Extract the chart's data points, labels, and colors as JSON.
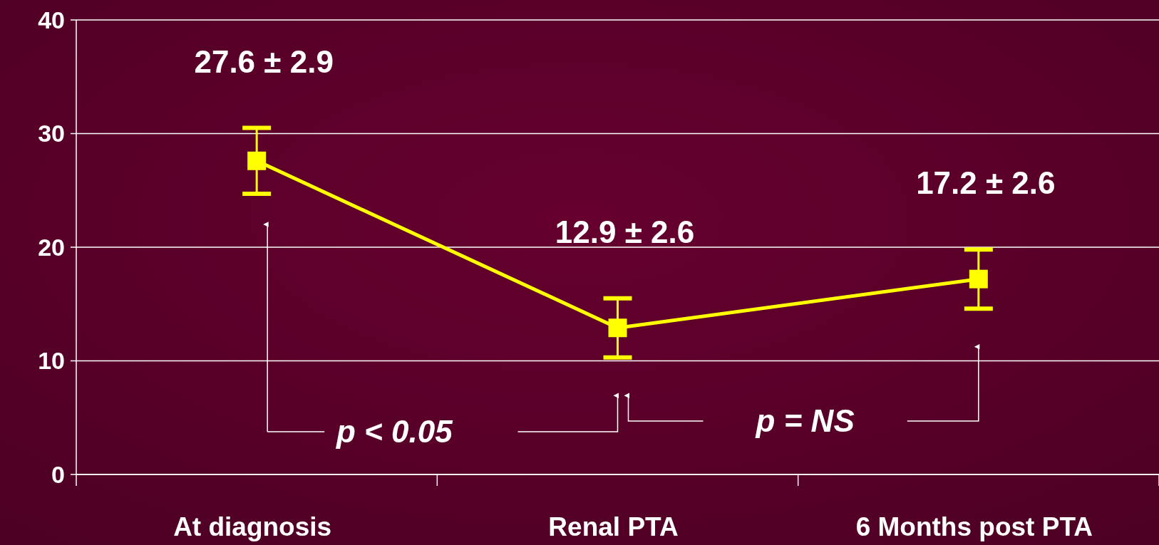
{
  "chart_data": {
    "type": "line",
    "categories": [
      "At diagnosis",
      "Renal PTA",
      "6 Months post PTA"
    ],
    "series": [
      {
        "color": "#ffff00",
        "values": [
          27.6,
          12.9,
          17.2
        ],
        "errors": [
          2.9,
          2.6,
          2.6
        ],
        "value_labels": [
          "27.6 ± 2.9",
          "12.9 ± 2.6",
          "17.2 ± 2.6"
        ]
      }
    ],
    "ylim": [
      0,
      40
    ],
    "yticks": [
      0,
      10,
      20,
      30,
      40
    ],
    "grid": "y",
    "marker": "square",
    "line_style": "solid",
    "annotations": [
      "p < 0.05",
      "p = NS"
    ]
  }
}
